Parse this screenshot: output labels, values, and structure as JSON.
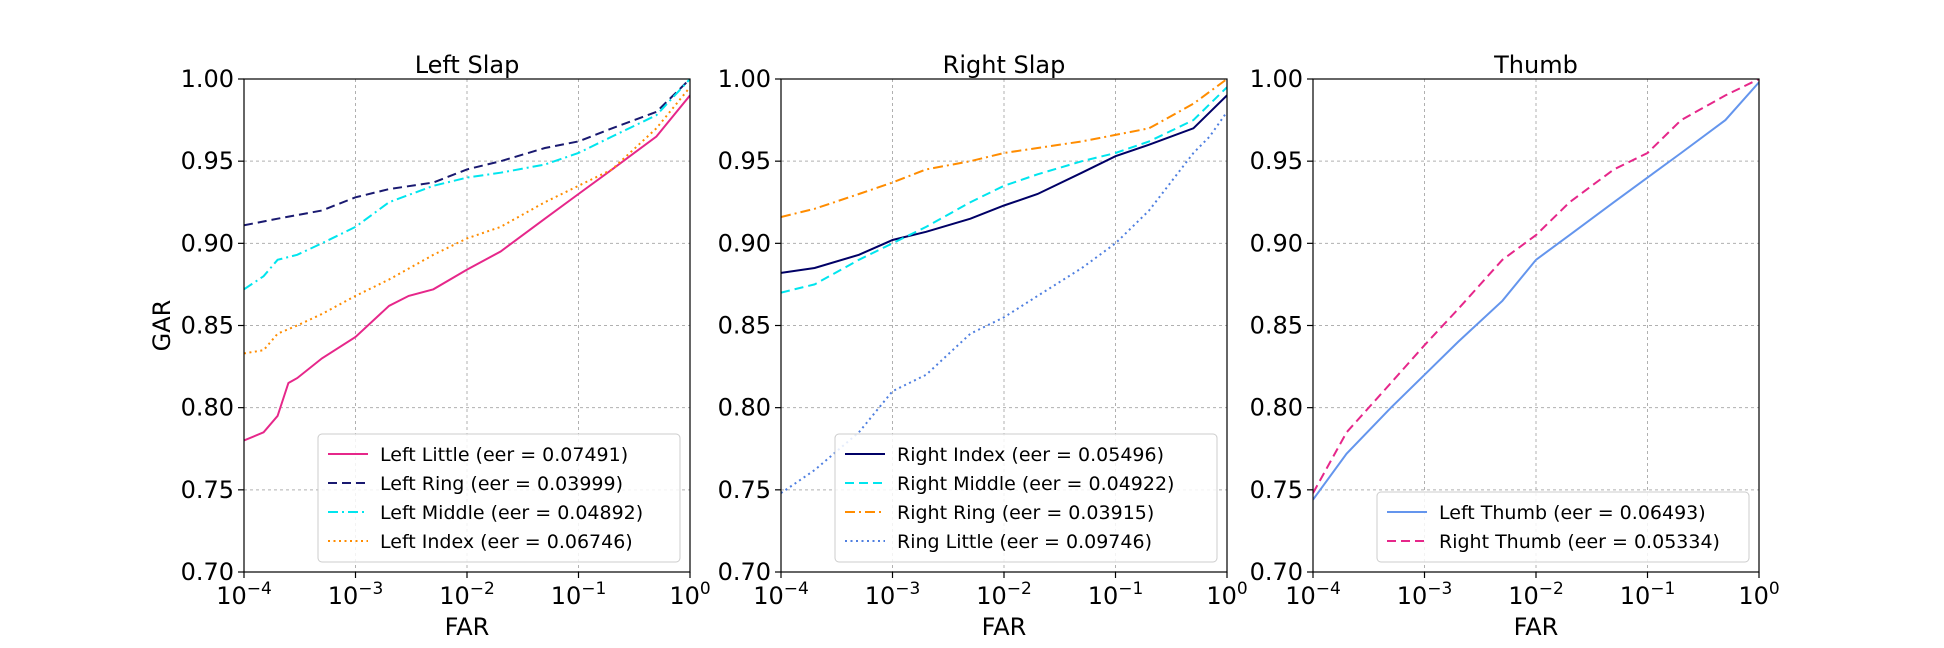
{
  "chart_data": [
    {
      "type": "line",
      "title": "Left Slap",
      "xlabel": "FAR",
      "ylabel": "GAR",
      "xscale": "log",
      "xlim": [
        0.0001,
        1
      ],
      "ylim": [
        0.7,
        1.0
      ],
      "x_ticks": [
        0.0001,
        0.001,
        0.01,
        0.1,
        1
      ],
      "x_tick_labels": [
        {
          "base": "10",
          "exp": "−4"
        },
        {
          "base": "10",
          "exp": "−3"
        },
        {
          "base": "10",
          "exp": "−2"
        },
        {
          "base": "10",
          "exp": "−1"
        },
        {
          "base": "10",
          "exp": "0"
        }
      ],
      "y_ticks": [
        0.7,
        0.75,
        0.8,
        0.85,
        0.9,
        0.95,
        1.0
      ],
      "y_tick_labels": [
        "0.70",
        "0.75",
        "0.80",
        "0.85",
        "0.90",
        "0.95",
        "1.00"
      ],
      "grid": true,
      "legend_position": "lower-right",
      "series": [
        {
          "name": "Left Little (eer = 0.07491)",
          "color": "#e6278a",
          "dash": "solid",
          "x": [
            0.0001,
            0.00015,
            0.0002,
            0.00025,
            0.0003,
            0.0005,
            0.001,
            0.002,
            0.003,
            0.005,
            0.01,
            0.02,
            0.05,
            0.1,
            0.2,
            0.5,
            1
          ],
          "y": [
            0.78,
            0.785,
            0.795,
            0.815,
            0.818,
            0.83,
            0.843,
            0.862,
            0.868,
            0.872,
            0.884,
            0.895,
            0.915,
            0.93,
            0.945,
            0.965,
            0.99
          ]
        },
        {
          "name": "Left Ring (eer = 0.03999)",
          "color": "#191970",
          "dash": "dashed",
          "x": [
            0.0001,
            0.0002,
            0.0005,
            0.001,
            0.002,
            0.005,
            0.01,
            0.02,
            0.05,
            0.1,
            0.2,
            0.5,
            1
          ],
          "y": [
            0.911,
            0.915,
            0.92,
            0.928,
            0.933,
            0.937,
            0.945,
            0.95,
            0.958,
            0.962,
            0.97,
            0.98,
            1.0
          ]
        },
        {
          "name": "Left Middle (eer = 0.04892)",
          "color": "#00e5ee",
          "dash": "dashdot",
          "x": [
            0.0001,
            0.00015,
            0.0002,
            0.0003,
            0.0005,
            0.001,
            0.002,
            0.005,
            0.01,
            0.02,
            0.05,
            0.1,
            0.2,
            0.5,
            1
          ],
          "y": [
            0.872,
            0.88,
            0.89,
            0.893,
            0.9,
            0.91,
            0.925,
            0.935,
            0.94,
            0.943,
            0.948,
            0.955,
            0.965,
            0.978,
            1.0
          ]
        },
        {
          "name": "Left Index (eer = 0.06746)",
          "color": "#ff8c00",
          "dash": "dotted",
          "x": [
            0.0001,
            0.00015,
            0.0002,
            0.0003,
            0.0005,
            0.001,
            0.002,
            0.005,
            0.01,
            0.02,
            0.05,
            0.1,
            0.2,
            0.5,
            1
          ],
          "y": [
            0.833,
            0.835,
            0.845,
            0.85,
            0.857,
            0.868,
            0.878,
            0.893,
            0.903,
            0.91,
            0.925,
            0.935,
            0.945,
            0.97,
            0.995
          ]
        }
      ]
    },
    {
      "type": "line",
      "title": "Right Slap",
      "xlabel": "FAR",
      "ylabel": "",
      "xscale": "log",
      "xlim": [
        0.0001,
        1
      ],
      "ylim": [
        0.7,
        1.0
      ],
      "x_ticks": [
        0.0001,
        0.001,
        0.01,
        0.1,
        1
      ],
      "x_tick_labels": [
        {
          "base": "10",
          "exp": "−4"
        },
        {
          "base": "10",
          "exp": "−3"
        },
        {
          "base": "10",
          "exp": "−2"
        },
        {
          "base": "10",
          "exp": "−1"
        },
        {
          "base": "10",
          "exp": "0"
        }
      ],
      "y_ticks": [
        0.7,
        0.75,
        0.8,
        0.85,
        0.9,
        0.95,
        1.0
      ],
      "y_tick_labels": [
        "0.70",
        "0.75",
        "0.80",
        "0.85",
        "0.90",
        "0.95",
        "1.00"
      ],
      "grid": true,
      "legend_position": "lower-right",
      "series": [
        {
          "name": "Right Index (eer = 0.05496)",
          "color": "#000066",
          "dash": "solid",
          "x": [
            0.0001,
            0.0002,
            0.0005,
            0.001,
            0.002,
            0.005,
            0.01,
            0.02,
            0.05,
            0.1,
            0.2,
            0.5,
            1
          ],
          "y": [
            0.882,
            0.885,
            0.893,
            0.902,
            0.907,
            0.915,
            0.923,
            0.93,
            0.943,
            0.953,
            0.96,
            0.97,
            0.99
          ]
        },
        {
          "name": "Right Middle (eer = 0.04922)",
          "color": "#00e5ee",
          "dash": "dashed",
          "x": [
            0.0001,
            0.0002,
            0.0005,
            0.001,
            0.002,
            0.005,
            0.01,
            0.02,
            0.05,
            0.1,
            0.2,
            0.5,
            1
          ],
          "y": [
            0.87,
            0.875,
            0.89,
            0.9,
            0.91,
            0.925,
            0.935,
            0.942,
            0.95,
            0.955,
            0.962,
            0.975,
            0.995
          ]
        },
        {
          "name": "Right Ring (eer = 0.03915)",
          "color": "#ff8c00",
          "dash": "dashdot",
          "x": [
            0.0001,
            0.0002,
            0.0005,
            0.001,
            0.002,
            0.005,
            0.01,
            0.02,
            0.05,
            0.1,
            0.2,
            0.5,
            1
          ],
          "y": [
            0.916,
            0.921,
            0.93,
            0.937,
            0.945,
            0.95,
            0.955,
            0.958,
            0.962,
            0.966,
            0.97,
            0.985,
            1.0
          ]
        },
        {
          "name": "Ring Little (eer = 0.09746)",
          "color": "#4f7fe0",
          "dash": "dotted",
          "x": [
            0.0001,
            0.0002,
            0.0005,
            0.001,
            0.002,
            0.005,
            0.01,
            0.02,
            0.05,
            0.1,
            0.2,
            0.5,
            0.7,
            1
          ],
          "y": [
            0.748,
            0.762,
            0.785,
            0.81,
            0.82,
            0.845,
            0.855,
            0.868,
            0.885,
            0.9,
            0.92,
            0.955,
            0.965,
            0.98
          ]
        }
      ]
    },
    {
      "type": "line",
      "title": "Thumb",
      "xlabel": "FAR",
      "ylabel": "",
      "xscale": "log",
      "xlim": [
        0.0001,
        1
      ],
      "ylim": [
        0.7,
        1.0
      ],
      "x_ticks": [
        0.0001,
        0.001,
        0.01,
        0.1,
        1
      ],
      "x_tick_labels": [
        {
          "base": "10",
          "exp": "−4"
        },
        {
          "base": "10",
          "exp": "−3"
        },
        {
          "base": "10",
          "exp": "−2"
        },
        {
          "base": "10",
          "exp": "−1"
        },
        {
          "base": "10",
          "exp": "0"
        }
      ],
      "y_ticks": [
        0.7,
        0.75,
        0.8,
        0.85,
        0.9,
        0.95,
        1.0
      ],
      "y_tick_labels": [
        "0.70",
        "0.75",
        "0.80",
        "0.85",
        "0.90",
        "0.95",
        "1.00"
      ],
      "grid": true,
      "legend_position": "lower-right",
      "series": [
        {
          "name": "Left Thumb (eer = 0.06493)",
          "color": "#6495ed",
          "dash": "solid",
          "x": [
            0.0001,
            0.0002,
            0.0005,
            0.001,
            0.002,
            0.005,
            0.01,
            0.02,
            0.05,
            0.1,
            0.2,
            0.5,
            1
          ],
          "y": [
            0.744,
            0.772,
            0.8,
            0.82,
            0.84,
            0.865,
            0.89,
            0.905,
            0.925,
            0.94,
            0.955,
            0.975,
            0.998
          ]
        },
        {
          "name": "Right Thumb (eer = 0.05334)",
          "color": "#e6278a",
          "dash": "dashed",
          "x": [
            0.0001,
            0.0002,
            0.0005,
            0.001,
            0.002,
            0.005,
            0.01,
            0.02,
            0.05,
            0.1,
            0.2,
            0.5,
            1
          ],
          "y": [
            0.748,
            0.785,
            0.815,
            0.838,
            0.86,
            0.89,
            0.905,
            0.925,
            0.945,
            0.955,
            0.975,
            0.99,
            1.0
          ]
        }
      ]
    }
  ]
}
